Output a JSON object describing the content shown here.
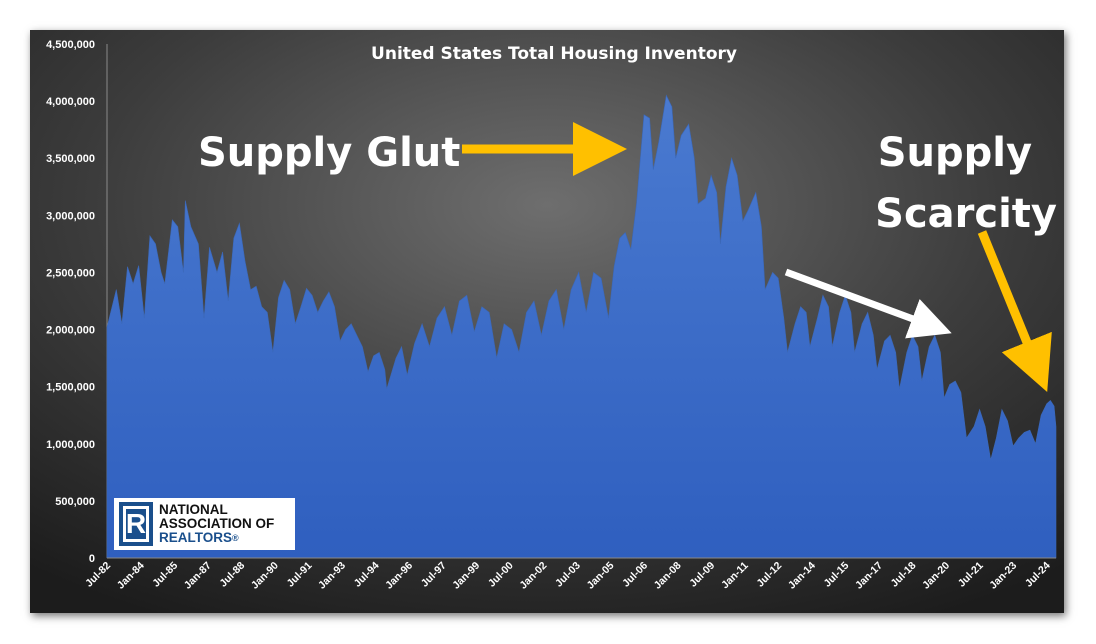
{
  "chart_data": {
    "type": "area",
    "title": "United States Total Housing Inventory",
    "xlabel": "",
    "ylabel": "",
    "ylim": [
      0,
      4500000
    ],
    "y_ticks": [
      0,
      500000,
      1000000,
      1500000,
      2000000,
      2500000,
      3000000,
      3500000,
      4000000,
      4500000
    ],
    "y_tick_labels": [
      "0",
      "500,000",
      "1,000,000",
      "1,500,000",
      "2,000,000",
      "2,500,000",
      "3,000,000",
      "3,500,000",
      "4,000,000",
      "4,500,000"
    ],
    "x_tick_labels": [
      "Jul-82",
      "Jan-84",
      "Jul-85",
      "Jan-87",
      "Jul-88",
      "Jan-90",
      "Jul-91",
      "Jan-93",
      "Jul-94",
      "Jan-96",
      "Jul-97",
      "Jan-99",
      "Jul-00",
      "Jan-02",
      "Jul-03",
      "Jan-05",
      "Jul-06",
      "Jan-08",
      "Jul-09",
      "Jan-11",
      "Jul-12",
      "Jan-14",
      "Jul-15",
      "Jan-17",
      "Jul-18",
      "Jan-20",
      "Jul-21",
      "Jan-23",
      "Jul-24"
    ],
    "grid": false,
    "legend": "none",
    "fill_color": "#4472c4",
    "series": [
      {
        "points": [
          [
            "1982-07",
            2020000
          ],
          [
            "1982-12",
            2350000
          ],
          [
            "1983-03",
            2050000
          ],
          [
            "1983-06",
            2550000
          ],
          [
            "1983-09",
            2400000
          ],
          [
            "1983-12",
            2560000
          ],
          [
            "1984-03",
            2100000
          ],
          [
            "1984-06",
            2820000
          ],
          [
            "1984-09",
            2750000
          ],
          [
            "1984-12",
            2500000
          ],
          [
            "1985-02",
            2400000
          ],
          [
            "1985-06",
            2960000
          ],
          [
            "1985-09",
            2900000
          ],
          [
            "1985-12",
            2500000
          ],
          [
            "1986-01",
            3130000
          ],
          [
            "1986-04",
            2900000
          ],
          [
            "1986-08",
            2750000
          ],
          [
            "1986-11",
            2100000
          ],
          [
            "1987-02",
            2720000
          ],
          [
            "1987-06",
            2500000
          ],
          [
            "1987-09",
            2680000
          ],
          [
            "1987-12",
            2250000
          ],
          [
            "1988-03",
            2800000
          ],
          [
            "1988-06",
            2930000
          ],
          [
            "1988-09",
            2600000
          ],
          [
            "1988-12",
            2350000
          ],
          [
            "1989-03",
            2380000
          ],
          [
            "1989-06",
            2200000
          ],
          [
            "1989-09",
            2150000
          ],
          [
            "1989-12",
            1800000
          ],
          [
            "1990-03",
            2280000
          ],
          [
            "1990-06",
            2430000
          ],
          [
            "1990-09",
            2350000
          ],
          [
            "1990-12",
            2050000
          ],
          [
            "1991-03",
            2200000
          ],
          [
            "1991-06",
            2360000
          ],
          [
            "1991-09",
            2300000
          ],
          [
            "1991-12",
            2150000
          ],
          [
            "1992-03",
            2250000
          ],
          [
            "1992-06",
            2330000
          ],
          [
            "1992-09",
            2200000
          ],
          [
            "1992-12",
            1900000
          ],
          [
            "1993-03",
            2000000
          ],
          [
            "1993-06",
            2050000
          ],
          [
            "1993-09",
            1950000
          ],
          [
            "1993-12",
            1850000
          ],
          [
            "1994-03",
            1630000
          ],
          [
            "1994-06",
            1770000
          ],
          [
            "1994-09",
            1800000
          ],
          [
            "1994-12",
            1650000
          ],
          [
            "1995-01",
            1480000
          ],
          [
            "1995-06",
            1750000
          ],
          [
            "1995-09",
            1850000
          ],
          [
            "1995-12",
            1600000
          ],
          [
            "1996-04",
            1880000
          ],
          [
            "1996-08",
            2050000
          ],
          [
            "1996-12",
            1850000
          ],
          [
            "1997-04",
            2100000
          ],
          [
            "1997-08",
            2200000
          ],
          [
            "1997-12",
            1950000
          ],
          [
            "1998-04",
            2250000
          ],
          [
            "1998-08",
            2300000
          ],
          [
            "1998-12",
            1980000
          ],
          [
            "1999-04",
            2200000
          ],
          [
            "1999-08",
            2150000
          ],
          [
            "1999-12",
            1750000
          ],
          [
            "2000-04",
            2050000
          ],
          [
            "2000-08",
            2000000
          ],
          [
            "2000-12",
            1800000
          ],
          [
            "2001-04",
            2150000
          ],
          [
            "2001-08",
            2250000
          ],
          [
            "2001-12",
            1950000
          ],
          [
            "2002-04",
            2250000
          ],
          [
            "2002-08",
            2350000
          ],
          [
            "2002-12",
            2000000
          ],
          [
            "2003-04",
            2350000
          ],
          [
            "2003-08",
            2500000
          ],
          [
            "2003-12",
            2150000
          ],
          [
            "2004-04",
            2500000
          ],
          [
            "2004-08",
            2450000
          ],
          [
            "2004-12",
            2100000
          ],
          [
            "2005-03",
            2550000
          ],
          [
            "2005-06",
            2800000
          ],
          [
            "2005-09",
            2850000
          ],
          [
            "2005-12",
            2700000
          ],
          [
            "2006-03",
            3100000
          ],
          [
            "2006-07",
            3880000
          ],
          [
            "2006-10",
            3850000
          ],
          [
            "2006-12",
            3400000
          ],
          [
            "2007-03",
            3650000
          ],
          [
            "2007-07",
            4050000
          ],
          [
            "2007-10",
            3950000
          ],
          [
            "2007-12",
            3500000
          ],
          [
            "2008-03",
            3700000
          ],
          [
            "2008-07",
            3800000
          ],
          [
            "2008-10",
            3500000
          ],
          [
            "2008-12",
            3100000
          ],
          [
            "2009-04",
            3150000
          ],
          [
            "2009-07",
            3350000
          ],
          [
            "2009-10",
            3200000
          ],
          [
            "2009-12",
            2750000
          ],
          [
            "2010-03",
            3250000
          ],
          [
            "2010-06",
            3500000
          ],
          [
            "2010-09",
            3350000
          ],
          [
            "2010-12",
            2950000
          ],
          [
            "2011-03",
            3050000
          ],
          [
            "2011-07",
            3200000
          ],
          [
            "2011-10",
            2900000
          ],
          [
            "2011-12",
            2350000
          ],
          [
            "2012-04",
            2500000
          ],
          [
            "2012-07",
            2450000
          ],
          [
            "2012-10",
            2100000
          ],
          [
            "2012-12",
            1800000
          ],
          [
            "2013-04",
            2050000
          ],
          [
            "2013-07",
            2200000
          ],
          [
            "2013-10",
            2150000
          ],
          [
            "2013-12",
            1850000
          ],
          [
            "2014-04",
            2100000
          ],
          [
            "2014-07",
            2300000
          ],
          [
            "2014-10",
            2200000
          ],
          [
            "2014-12",
            1850000
          ],
          [
            "2015-04",
            2150000
          ],
          [
            "2015-07",
            2300000
          ],
          [
            "2015-10",
            2150000
          ],
          [
            "2015-12",
            1800000
          ],
          [
            "2016-04",
            2050000
          ],
          [
            "2016-07",
            2150000
          ],
          [
            "2016-10",
            1950000
          ],
          [
            "2016-12",
            1650000
          ],
          [
            "2017-04",
            1900000
          ],
          [
            "2017-07",
            1950000
          ],
          [
            "2017-10",
            1800000
          ],
          [
            "2017-12",
            1480000
          ],
          [
            "2018-04",
            1800000
          ],
          [
            "2018-07",
            1950000
          ],
          [
            "2018-10",
            1850000
          ],
          [
            "2018-12",
            1550000
          ],
          [
            "2019-04",
            1850000
          ],
          [
            "2019-07",
            1950000
          ],
          [
            "2019-10",
            1800000
          ],
          [
            "2019-12",
            1400000
          ],
          [
            "2020-03",
            1520000
          ],
          [
            "2020-06",
            1550000
          ],
          [
            "2020-09",
            1450000
          ],
          [
            "2020-12",
            1050000
          ],
          [
            "2021-04",
            1150000
          ],
          [
            "2021-07",
            1300000
          ],
          [
            "2021-10",
            1150000
          ],
          [
            "2022-01",
            860000
          ],
          [
            "2022-04",
            1050000
          ],
          [
            "2022-07",
            1300000
          ],
          [
            "2022-10",
            1200000
          ],
          [
            "2023-01",
            980000
          ],
          [
            "2023-04",
            1050000
          ],
          [
            "2023-07",
            1100000
          ],
          [
            "2023-10",
            1120000
          ],
          [
            "2024-01",
            1000000
          ],
          [
            "2024-04",
            1250000
          ],
          [
            "2024-07",
            1350000
          ],
          [
            "2024-09",
            1380000
          ],
          [
            "2024-11",
            1330000
          ],
          [
            "2024-12",
            1150000
          ]
        ]
      }
    ],
    "annotations": [
      {
        "text": "Supply Glut",
        "arrow_color": "#ffc000"
      },
      {
        "text": "Supply Scarcity",
        "arrow_color": "#ffc000"
      },
      {
        "text": "",
        "arrow_color": "#ffffff"
      }
    ]
  },
  "logo": {
    "mark": "R",
    "line1": "NATIONAL",
    "line2": "ASSOCIATION OF",
    "line3": "REALTORS",
    "reg": "®"
  }
}
